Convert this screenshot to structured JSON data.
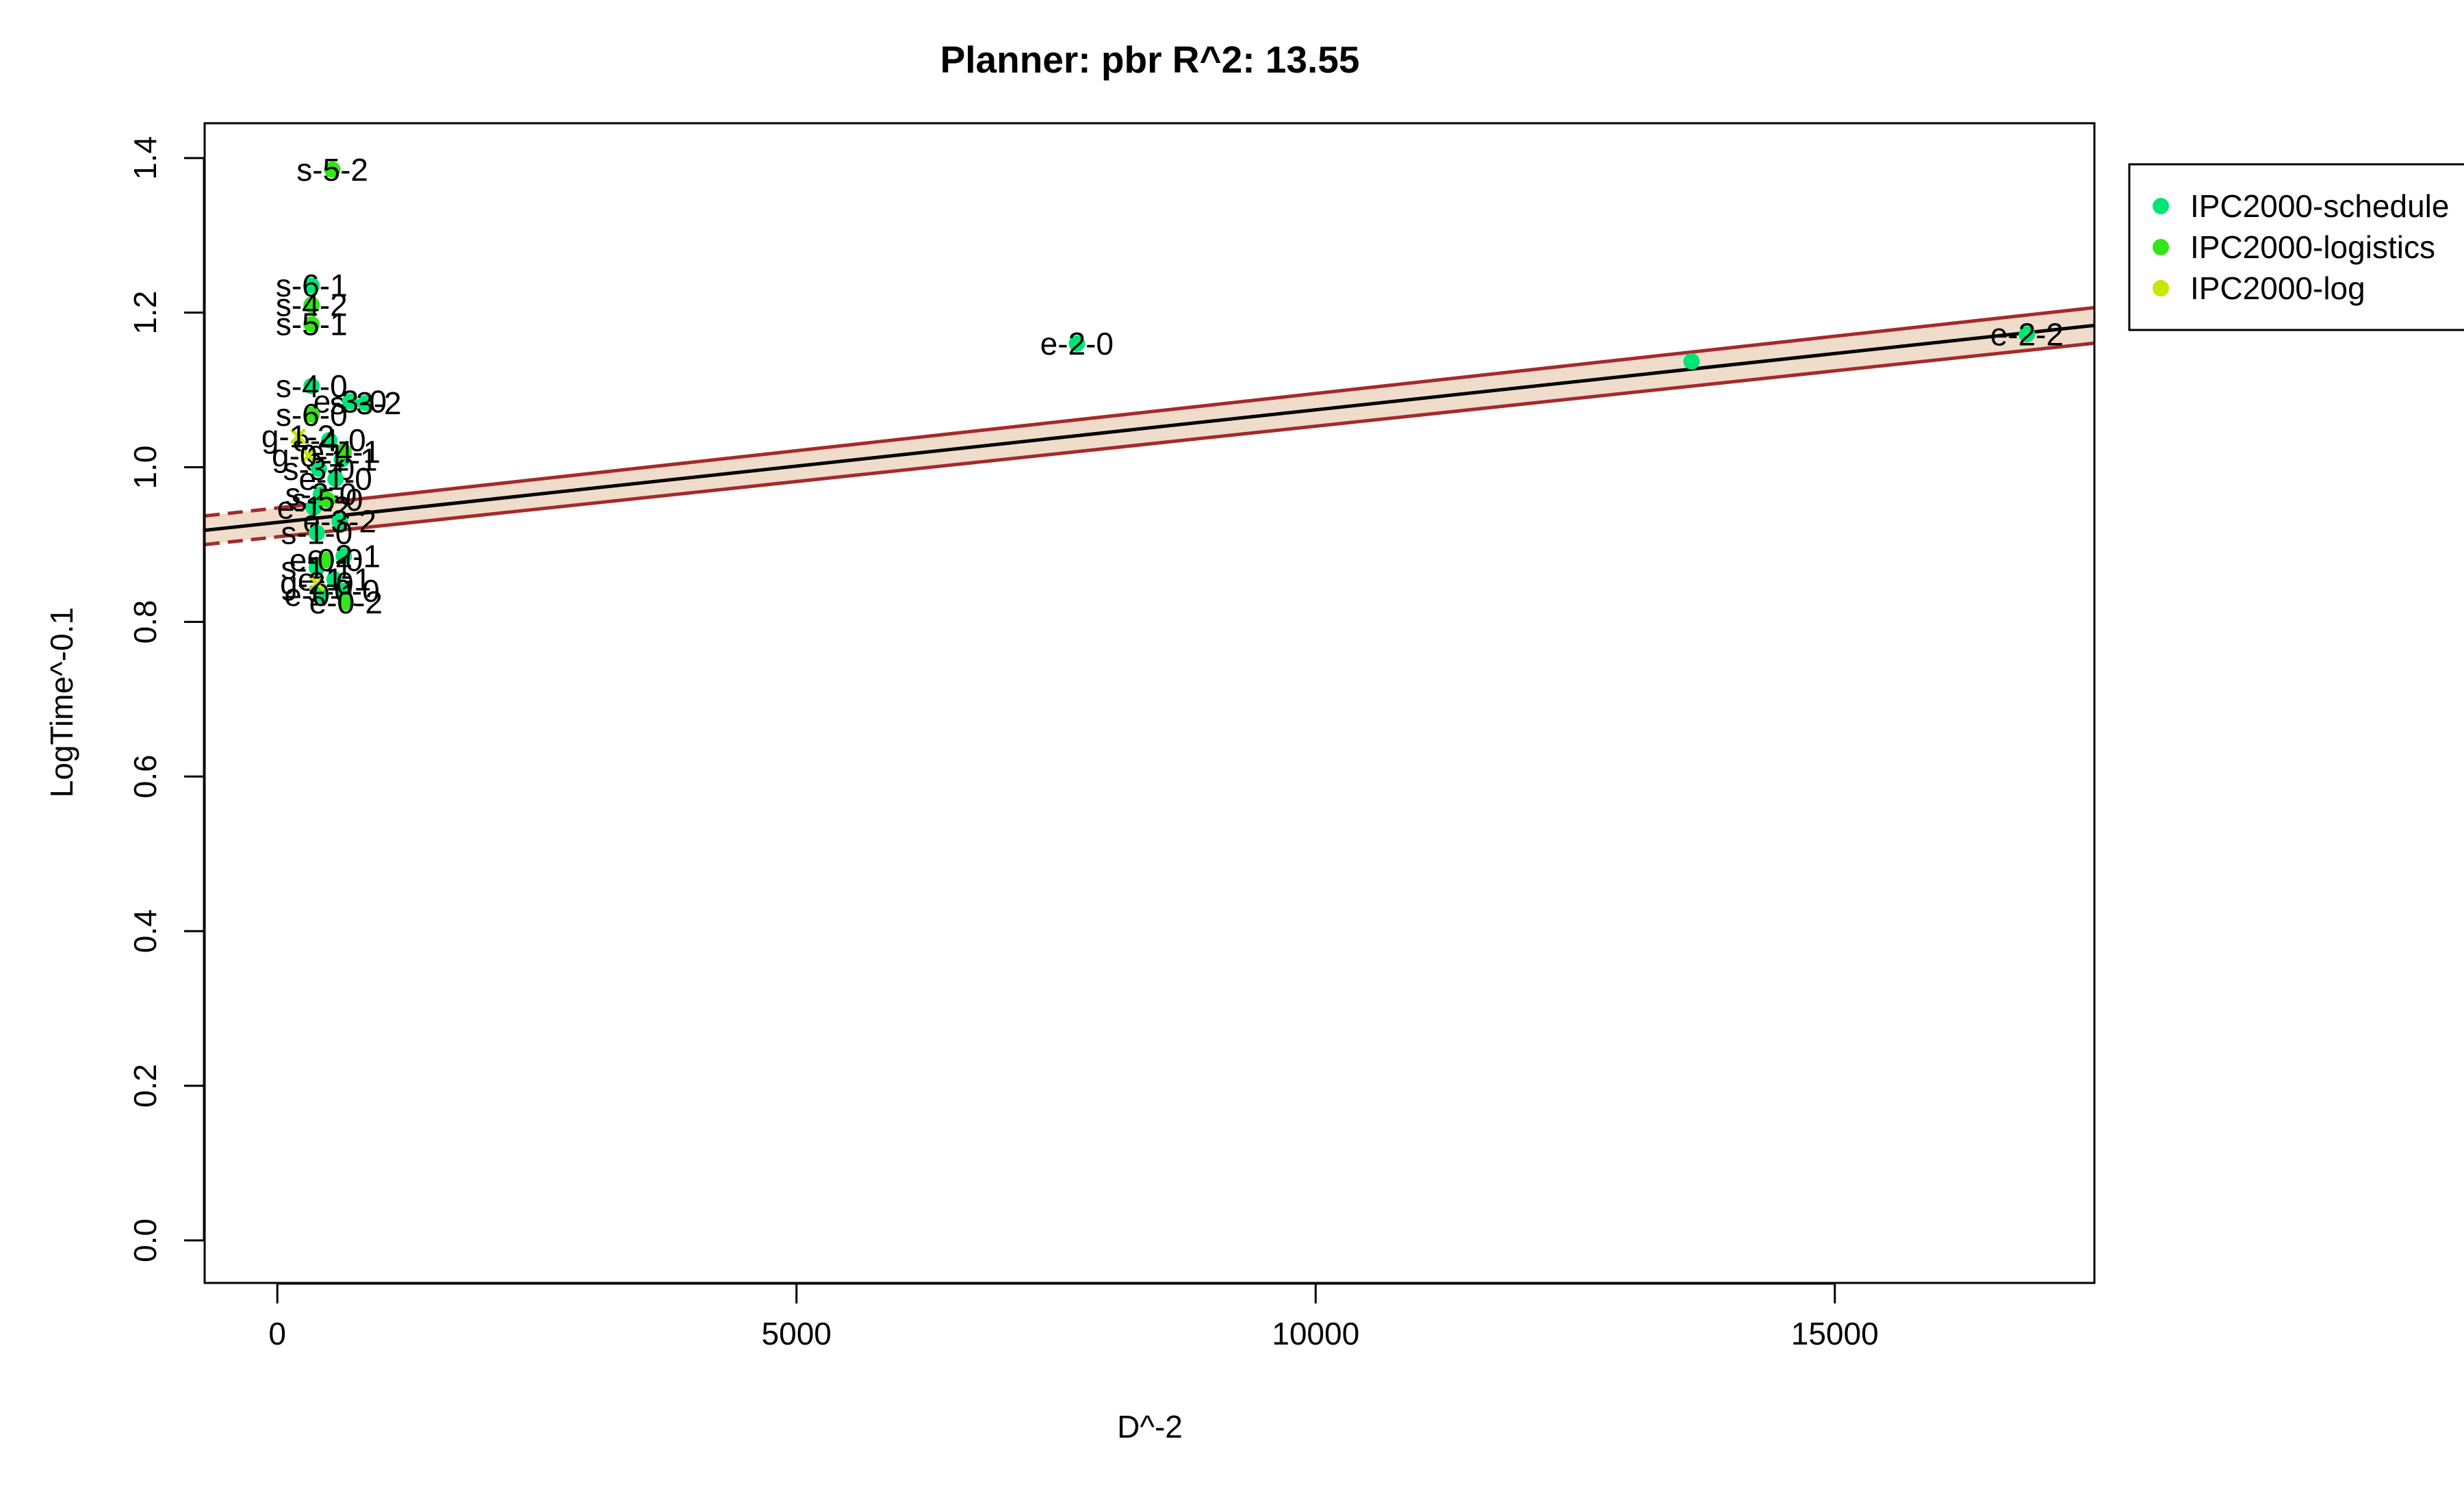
{
  "chart_data": {
    "type": "scatter",
    "title": "Planner: pbr R^2: 13.55",
    "xlabel": "D^-2",
    "ylabel": "LogTime^-0.1",
    "xlim": [
      -700,
      17500
    ],
    "ylim": [
      -0.055,
      1.445
    ],
    "xticks": [
      0,
      5000,
      10000,
      15000
    ],
    "xtick_labels": [
      "0",
      "5000",
      "10000",
      "15000"
    ],
    "yticks": [
      0.0,
      0.2,
      0.4,
      0.6,
      0.8,
      1.0,
      1.2,
      1.4
    ],
    "ytick_labels": [
      "0.0",
      "0.2",
      "0.4",
      "0.6",
      "0.8",
      "1.0",
      "1.2",
      "1.4"
    ],
    "grid": false,
    "legend": {
      "placement": "outside-top-right",
      "entries": [
        {
          "label": "IPC2000-schedule",
          "color": "#00e676"
        },
        {
          "label": "IPC2000-logistics",
          "color": "#33e619"
        },
        {
          "label": "IPC2000-log",
          "color": "#c8e600"
        }
      ]
    },
    "colors": {
      "line": "#000000",
      "band_fill": "#f0dccb",
      "band_edge": "#a52a2a"
    },
    "regression": {
      "x": [
        -700,
        17500
      ],
      "fit": [
        0.9185,
        1.1835
      ],
      "upper": [
        0.937,
        1.2065
      ],
      "lower": [
        0.9,
        1.1605
      ],
      "extrapolated_below_x": 0
    },
    "series": [
      {
        "name": "IPC2000-schedule",
        "marker": "circle",
        "color": "#00e676",
        "points": [
          {
            "x": 7700,
            "y": 1.16,
            "label": "e-2-0"
          },
          {
            "x": 13620,
            "y": 1.137,
            "label": ""
          },
          {
            "x": 16850,
            "y": 1.172,
            "label": "e-2-2"
          },
          {
            "x": 330,
            "y": 1.235,
            "label": "s-6-1"
          },
          {
            "x": 330,
            "y": 1.105,
            "label": "s-4-0"
          },
          {
            "x": 850,
            "y": 1.083,
            "label": "s-3-2"
          },
          {
            "x": 700,
            "y": 1.085,
            "label": "e-3-0"
          },
          {
            "x": 500,
            "y": 1.035,
            "label": "e-4-0"
          },
          {
            "x": 620,
            "y": 1.01,
            "label": "s-2-1"
          },
          {
            "x": 400,
            "y": 0.998,
            "label": "s-3-0"
          },
          {
            "x": 560,
            "y": 0.985,
            "label": "e-1-0"
          },
          {
            "x": 420,
            "y": 0.965,
            "label": "s-2-0"
          },
          {
            "x": 350,
            "y": 0.948,
            "label": "e-1-2"
          },
          {
            "x": 600,
            "y": 0.93,
            "label": "e-3-2"
          },
          {
            "x": 380,
            "y": 0.915,
            "label": "s-1-0"
          },
          {
            "x": 640,
            "y": 0.885,
            "label": "e-2-1"
          },
          {
            "x": 380,
            "y": 0.87,
            "label": "s-1-1"
          },
          {
            "x": 550,
            "y": 0.855,
            "label": "e-1-1"
          },
          {
            "x": 640,
            "y": 0.84,
            "label": "s-0-0"
          },
          {
            "x": 420,
            "y": 0.835,
            "label": "e-0-1"
          }
        ]
      },
      {
        "name": "IPC2000-logistics",
        "marker": "circle",
        "color": "#33e619",
        "points": [
          {
            "x": 530,
            "y": 1.385,
            "label": "s-5-2"
          },
          {
            "x": 330,
            "y": 1.21,
            "label": "s-4-2"
          },
          {
            "x": 330,
            "y": 1.185,
            "label": "s-5-1"
          },
          {
            "x": 330,
            "y": 1.068,
            "label": "s-6-0"
          },
          {
            "x": 640,
            "y": 1.02,
            "label": "e-4-1"
          },
          {
            "x": 480,
            "y": 0.958,
            "label": "s-5-0"
          },
          {
            "x": 470,
            "y": 0.88,
            "label": "e-0-0"
          },
          {
            "x": 660,
            "y": 0.825,
            "label": "e-0-2"
          }
        ]
      },
      {
        "name": "IPC2000-log",
        "marker": "x",
        "color": "#c8e600",
        "points": [
          {
            "x": 200,
            "y": 1.04,
            "label": "g-1-2"
          },
          {
            "x": 300,
            "y": 1.015,
            "label": "g-0-1"
          },
          {
            "x": 380,
            "y": 0.85,
            "label": "g-2-0"
          }
        ]
      }
    ]
  }
}
